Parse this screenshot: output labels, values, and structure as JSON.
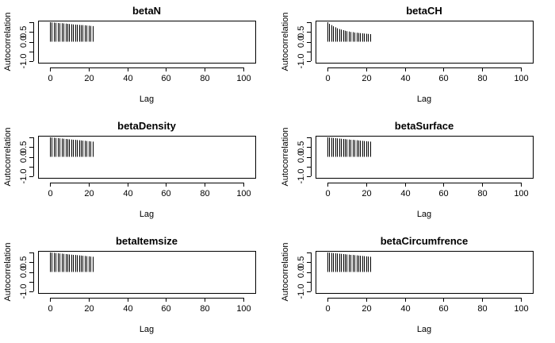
{
  "chart_data": [
    {
      "type": "bar",
      "title": "betaN",
      "xlabel": "Lag",
      "ylabel": "Autocorrelation",
      "xlim": [
        0,
        100
      ],
      "ylim": [
        -1,
        1
      ],
      "xticks": [
        "0",
        "20",
        "40",
        "60",
        "80",
        "100"
      ],
      "yticks": [
        "-1.0",
        "0.5"
      ],
      "lags": [
        0,
        1,
        2,
        3,
        4,
        5,
        6,
        7,
        8,
        9,
        10,
        11,
        12,
        13,
        14,
        15,
        16,
        17,
        18,
        19,
        20,
        21,
        22
      ],
      "values": [
        1.0,
        0.99,
        0.98,
        0.97,
        0.96,
        0.95,
        0.95,
        0.94,
        0.93,
        0.92,
        0.91,
        0.9,
        0.89,
        0.88,
        0.87,
        0.86,
        0.85,
        0.85,
        0.84,
        0.83,
        0.82,
        0.81,
        0.8
      ]
    },
    {
      "type": "bar",
      "title": "betaCH",
      "xlabel": "Lag",
      "ylabel": "Autocorrelation",
      "xlim": [
        0,
        100
      ],
      "ylim": [
        -1,
        1
      ],
      "xticks": [
        "0",
        "20",
        "40",
        "60",
        "80",
        "100"
      ],
      "yticks": [
        "-1.0",
        "0.5"
      ],
      "lags": [
        0,
        1,
        2,
        3,
        4,
        5,
        6,
        7,
        8,
        9,
        10,
        11,
        12,
        13,
        14,
        15,
        16,
        17,
        18,
        19,
        20,
        21,
        22
      ],
      "values": [
        1.0,
        0.92,
        0.85,
        0.79,
        0.74,
        0.69,
        0.65,
        0.62,
        0.59,
        0.56,
        0.54,
        0.52,
        0.5,
        0.49,
        0.47,
        0.46,
        0.45,
        0.44,
        0.43,
        0.42,
        0.41,
        0.4,
        0.39
      ]
    },
    {
      "type": "bar",
      "title": "betaDensity",
      "xlabel": "Lag",
      "ylabel": "Autocorrelation",
      "xlim": [
        0,
        100
      ],
      "ylim": [
        -1,
        1
      ],
      "xticks": [
        "0",
        "20",
        "40",
        "60",
        "80",
        "100"
      ],
      "yticks": [
        "-1.0",
        "0.5"
      ],
      "lags": [
        0,
        1,
        2,
        3,
        4,
        5,
        6,
        7,
        8,
        9,
        10,
        11,
        12,
        13,
        14,
        15,
        16,
        17,
        18,
        19,
        20,
        21,
        22
      ],
      "values": [
        1.0,
        0.99,
        0.98,
        0.97,
        0.96,
        0.95,
        0.94,
        0.93,
        0.92,
        0.91,
        0.9,
        0.89,
        0.88,
        0.87,
        0.86,
        0.85,
        0.84,
        0.83,
        0.82,
        0.81,
        0.8,
        0.79,
        0.78
      ]
    },
    {
      "type": "bar",
      "title": "betaSurface",
      "xlabel": "Lag",
      "ylabel": "Autocorrelation",
      "xlim": [
        0,
        100
      ],
      "ylim": [
        -1,
        1
      ],
      "xticks": [
        "0",
        "20",
        "40",
        "60",
        "80",
        "100"
      ],
      "yticks": [
        "-1.0",
        "0.5"
      ],
      "lags": [
        0,
        1,
        2,
        3,
        4,
        5,
        6,
        7,
        8,
        9,
        10,
        11,
        12,
        13,
        14,
        15,
        16,
        17,
        18,
        19,
        20,
        21,
        22
      ],
      "values": [
        1.0,
        0.99,
        0.98,
        0.97,
        0.96,
        0.95,
        0.94,
        0.93,
        0.92,
        0.91,
        0.9,
        0.89,
        0.88,
        0.87,
        0.86,
        0.85,
        0.84,
        0.83,
        0.82,
        0.81,
        0.8,
        0.79,
        0.78
      ]
    },
    {
      "type": "bar",
      "title": "betaItemsize",
      "xlabel": "Lag",
      "ylabel": "Autocorrelation",
      "xlim": [
        0,
        100
      ],
      "ylim": [
        -1,
        1
      ],
      "xticks": [
        "0",
        "20",
        "40",
        "60",
        "80",
        "100"
      ],
      "yticks": [
        "-1.0",
        "0.5"
      ],
      "lags": [
        0,
        1,
        2,
        3,
        4,
        5,
        6,
        7,
        8,
        9,
        10,
        11,
        12,
        13,
        14,
        15,
        16,
        17,
        18,
        19,
        20,
        21,
        22
      ],
      "values": [
        1.0,
        0.99,
        0.98,
        0.97,
        0.96,
        0.95,
        0.94,
        0.93,
        0.92,
        0.91,
        0.9,
        0.89,
        0.88,
        0.87,
        0.86,
        0.85,
        0.84,
        0.83,
        0.82,
        0.81,
        0.8,
        0.79,
        0.78
      ]
    },
    {
      "type": "bar",
      "title": "betaCircumfrence",
      "xlabel": "Lag",
      "ylabel": "Autocorrelation",
      "xlim": [
        0,
        100
      ],
      "ylim": [
        -1,
        1
      ],
      "xticks": [
        "0",
        "20",
        "40",
        "60",
        "80",
        "100"
      ],
      "yticks": [
        "-1.0",
        "0.5"
      ],
      "lags": [
        0,
        1,
        2,
        3,
        4,
        5,
        6,
        7,
        8,
        9,
        10,
        11,
        12,
        13,
        14,
        15,
        16,
        17,
        18,
        19,
        20,
        21,
        22
      ],
      "values": [
        1.0,
        0.99,
        0.98,
        0.97,
        0.96,
        0.95,
        0.94,
        0.93,
        0.92,
        0.91,
        0.9,
        0.89,
        0.88,
        0.87,
        0.86,
        0.85,
        0.84,
        0.83,
        0.82,
        0.81,
        0.8,
        0.79,
        0.78
      ]
    }
  ]
}
